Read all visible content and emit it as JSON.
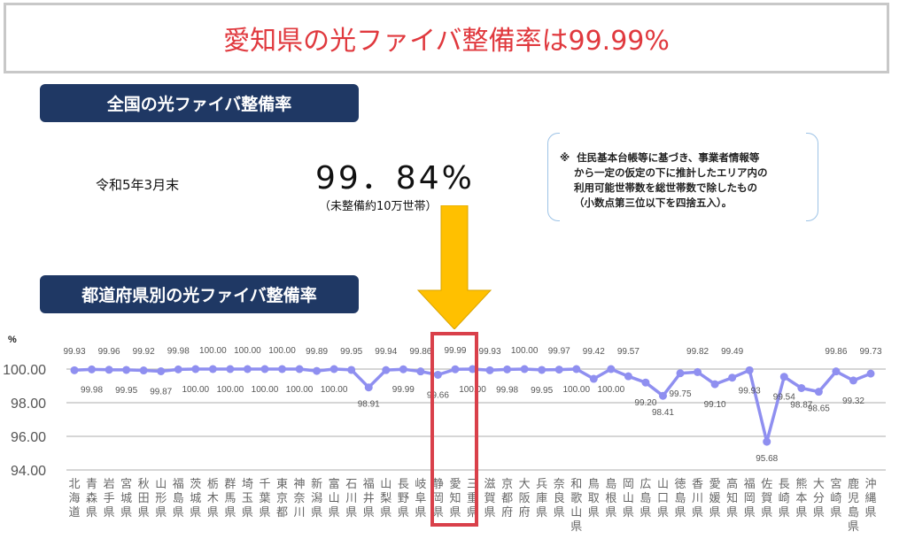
{
  "header": {
    "title": "愛知県の光ファイバ整備率は99.99%"
  },
  "national": {
    "heading": "全国の光ファイバ整備率",
    "date_label": "令和5年3月末",
    "value": "99．84%",
    "sub_note": "（未整備約10万世帯）",
    "footnote": "※  住民基本台帳等に基づき、事業者情報等\n    から一定の仮定の下に推計したエリア内の\n    利用可能世帯数を総世帯数で除したもの\n    （小数点第三位以下を四捨五入）。"
  },
  "prefectural": {
    "heading": "都道府県別の光ファイバ整備率"
  },
  "colors": {
    "title_red": "#e0393e",
    "pill_navy": "#1f3864",
    "line_purple": "#8f8ff0",
    "arrow_gold": "#ffc000",
    "highlight_red": "#d9404a"
  },
  "highlight": {
    "prefecture": "愛知県",
    "value": "99.99"
  },
  "chart_data": {
    "type": "line",
    "title": "都道府県別の光ファイバ整備率",
    "ylabel": "%",
    "xlabel": "",
    "ylim": [
      94.0,
      100.0
    ],
    "yticks": [
      "100.00",
      "98.00",
      "96.00",
      "94.00"
    ],
    "grid": true,
    "legend": "none",
    "categories": [
      "北海道",
      "青森県",
      "岩手県",
      "宮城県",
      "秋田県",
      "山形県",
      "福島県",
      "茨城県",
      "栃木県",
      "群馬県",
      "埼玉県",
      "千葉県",
      "東京都",
      "神奈川",
      "新潟県",
      "富山県",
      "石川県",
      "福井県",
      "山梨県",
      "長野県",
      "岐阜県",
      "静岡県",
      "愛知県",
      "三重県",
      "滋賀県",
      "京都府",
      "大阪府",
      "兵庫県",
      "奈良県",
      "和歌山県",
      "鳥取県",
      "島根県",
      "岡山県",
      "広島県",
      "山口県",
      "徳島県",
      "香川県",
      "愛媛県",
      "高知県",
      "福岡県",
      "佐賀県",
      "長崎県",
      "熊本県",
      "大分県",
      "宮崎県",
      "鹿児島県",
      "沖縄県"
    ],
    "series": [
      {
        "name": "光ファイバ整備率",
        "values": [
          99.93,
          99.98,
          99.96,
          99.95,
          99.92,
          99.87,
          99.98,
          100.0,
          100.0,
          100.0,
          100.0,
          100.0,
          100.0,
          100.0,
          99.89,
          100.0,
          99.95,
          98.91,
          99.94,
          99.99,
          99.86,
          99.66,
          99.99,
          100.0,
          99.93,
          99.98,
          100.0,
          99.95,
          99.97,
          100.0,
          99.42,
          100.0,
          99.57,
          99.2,
          98.41,
          99.75,
          99.82,
          99.1,
          99.49,
          99.93,
          95.68,
          99.54,
          98.87,
          98.65,
          99.86,
          99.32,
          99.73
        ]
      }
    ],
    "annotations": [
      "Down arrow pointing to 愛知県",
      "Red rectangle highlighting 静岡県・愛知県・三重県 region"
    ]
  }
}
